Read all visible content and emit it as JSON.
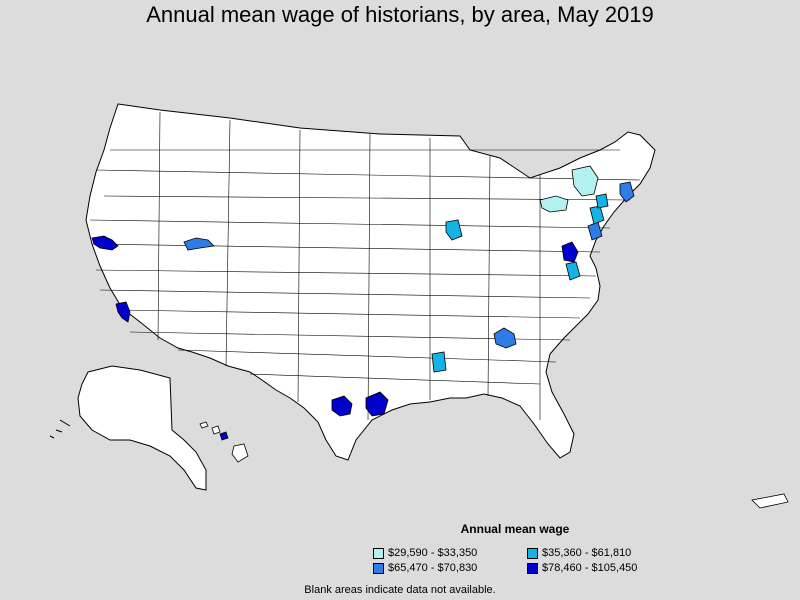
{
  "title": "Annual mean wage of historians, by area, May 2019",
  "legend": {
    "title": "Annual mean wage",
    "items": [
      {
        "label": "$29,590 - $33,350",
        "color": "#b3f0f0"
      },
      {
        "label": "$35,360 - $61,810",
        "color": "#14b3e6"
      },
      {
        "label": "$65,470 - $70,830",
        "color": "#2e7de6"
      },
      {
        "label": "$78,460 - $105,450",
        "color": "#0000cc"
      }
    ]
  },
  "footnote": "Blank areas indicate data not available.",
  "colors": {
    "background": "#dcdcdc",
    "land": "#ffffff",
    "border": "#000000"
  }
}
